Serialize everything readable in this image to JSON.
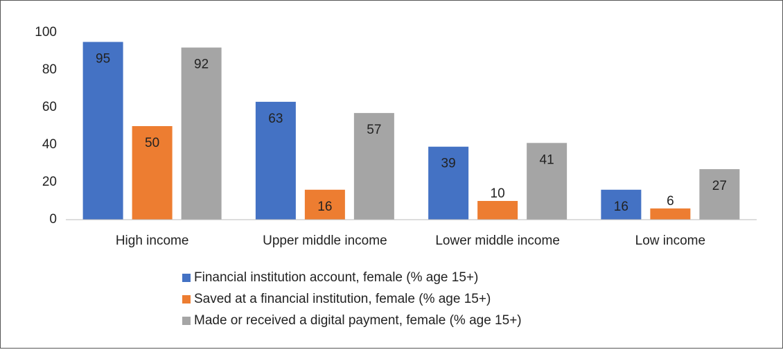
{
  "chart_data": {
    "type": "bar",
    "categories": [
      "High income",
      "Upper middle income",
      "Lower middle income",
      "Low income"
    ],
    "series": [
      {
        "name": "Financial institution account, female (% age 15+)",
        "color": "#4472c4",
        "values": [
          95,
          63,
          39,
          16
        ]
      },
      {
        "name": "Saved at a financial institution, female (% age 15+)",
        "color": "#ed7d31",
        "values": [
          50,
          16,
          10,
          6
        ]
      },
      {
        "name": "Made or received a digital payment, female (% age 15+)",
        "color": "#a5a5a5",
        "values": [
          92,
          57,
          41,
          27
        ]
      }
    ],
    "ylim": [
      0,
      100
    ],
    "yticks": [
      0,
      20,
      40,
      60,
      80,
      100
    ],
    "grid": false,
    "legend": "bottom"
  }
}
